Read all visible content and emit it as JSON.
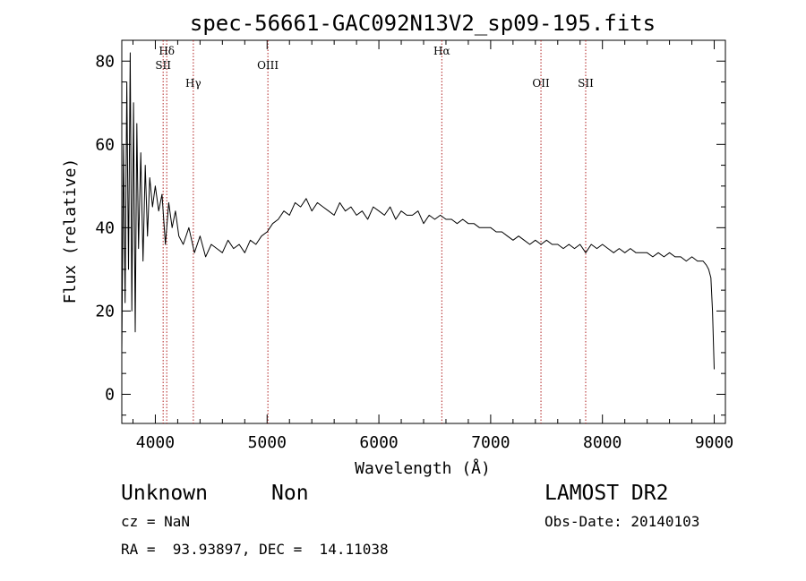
{
  "chart_data": {
    "type": "line",
    "title": "spec-56661-GAC092N13V2_sp09-195.fits",
    "xlabel": "Wavelength (Å)",
    "ylabel": "Flux (relative)",
    "xlim": [
      3700,
      9100
    ],
    "ylim": [
      -7,
      85
    ],
    "xticks": [
      4000,
      5000,
      6000,
      7000,
      8000,
      9000
    ],
    "yticks": [
      0,
      20,
      40,
      60,
      80
    ],
    "grid": false,
    "series": [
      {
        "color": "#000000",
        "x": [
          3700,
          3715,
          3730,
          3745,
          3760,
          3775,
          3790,
          3805,
          3820,
          3835,
          3850,
          3870,
          3890,
          3910,
          3930,
          3950,
          3975,
          4000,
          4030,
          4060,
          4090,
          4120,
          4150,
          4180,
          4210,
          4250,
          4300,
          4350,
          4400,
          4450,
          4500,
          4550,
          4600,
          4650,
          4700,
          4750,
          4800,
          4850,
          4900,
          4950,
          5000,
          5050,
          5100,
          5150,
          5200,
          5250,
          5300,
          5350,
          5400,
          5450,
          5500,
          5550,
          5600,
          5650,
          5700,
          5750,
          5800,
          5850,
          5900,
          5950,
          6000,
          6050,
          6100,
          6150,
          6200,
          6250,
          6300,
          6350,
          6400,
          6450,
          6500,
          6550,
          6600,
          6650,
          6700,
          6750,
          6800,
          6850,
          6900,
          6950,
          7000,
          7050,
          7100,
          7150,
          7200,
          7250,
          7300,
          7350,
          7400,
          7450,
          7500,
          7550,
          7600,
          7650,
          7700,
          7750,
          7800,
          7850,
          7900,
          7950,
          8000,
          8050,
          8100,
          8150,
          8200,
          8250,
          8300,
          8350,
          8400,
          8450,
          8500,
          8550,
          8600,
          8650,
          8700,
          8750,
          8800,
          8850,
          8900,
          8930,
          8950,
          8970,
          8985,
          9000
        ],
        "y": [
          10,
          60,
          22,
          75,
          30,
          82,
          20,
          70,
          15,
          65,
          35,
          58,
          32,
          55,
          38,
          52,
          45,
          50,
          44,
          48,
          36,
          46,
          40,
          44,
          38,
          36,
          40,
          34,
          38,
          33,
          36,
          35,
          34,
          37,
          35,
          36,
          34,
          37,
          36,
          38,
          39,
          41,
          42,
          44,
          43,
          46,
          45,
          47,
          44,
          46,
          45,
          44,
          43,
          46,
          44,
          45,
          43,
          44,
          42,
          45,
          44,
          43,
          45,
          42,
          44,
          43,
          43,
          44,
          41,
          43,
          42,
          43,
          42,
          42,
          41,
          42,
          41,
          41,
          40,
          40,
          40,
          39,
          39,
          38,
          37,
          38,
          37,
          36,
          37,
          36,
          37,
          36,
          36,
          35,
          36,
          35,
          36,
          34,
          36,
          35,
          36,
          35,
          34,
          35,
          34,
          35,
          34,
          34,
          34,
          33,
          34,
          33,
          34,
          33,
          33,
          32,
          33,
          32,
          32,
          31,
          30,
          28,
          20,
          6
        ]
      }
    ],
    "lines": [
      {
        "label": "Hδ",
        "x": 4102,
        "label_level": 0
      },
      {
        "label": "SII",
        "x": 4070,
        "label_level": 1
      },
      {
        "label": "Hγ",
        "x": 4340,
        "label_level": 2
      },
      {
        "label": "OIII",
        "x": 5007,
        "label_level": 1
      },
      {
        "label": "Hα",
        "x": 6563,
        "label_level": 0
      },
      {
        "label": "OII",
        "x": 7450,
        "label_level": 2
      },
      {
        "label": "SII",
        "x": 7850,
        "label_level": 2
      }
    ],
    "line_color": "#b02020"
  },
  "info": {
    "class": "Unknown",
    "subclass": "Non",
    "survey": "LAMOST DR2",
    "cz": "cz = NaN",
    "obs_date": "Obs-Date: 20140103",
    "coords": "RA =  93.93897, DEC =  14.11038"
  }
}
